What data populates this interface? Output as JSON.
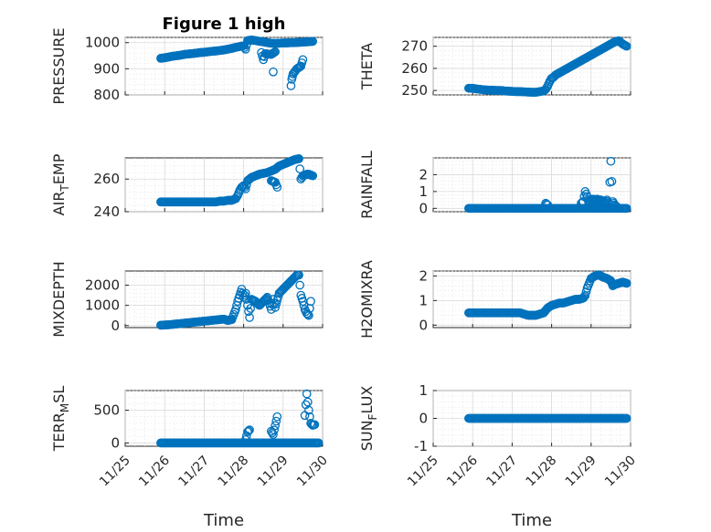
{
  "figure_title": "Figure 1 high",
  "colors": {
    "series": "#0072BD"
  },
  "chart_data": [
    {
      "type": "scatter",
      "title": "Figure 1 high",
      "xlabel": "",
      "ylabel": "PRESSURE",
      "ylim": [
        800,
        1020
      ],
      "yticks": [
        800,
        900,
        1000
      ],
      "ytick_labels": [
        "800",
        "900",
        "1000"
      ],
      "xlim": [
        0,
        5
      ],
      "xtick_labels": [],
      "grid": true,
      "x": [
        0.9,
        1.0,
        1.1,
        1.2,
        1.3,
        1.4,
        1.5,
        1.6,
        1.7,
        1.8,
        1.9,
        2.0,
        2.1,
        2.2,
        2.3,
        2.4,
        2.5,
        2.6,
        2.7,
        2.8,
        2.9,
        2.95,
        3.0,
        3.05,
        3.1,
        3.2,
        3.3,
        3.4,
        3.5,
        3.6,
        3.7,
        3.8,
        3.9,
        4.0,
        4.1,
        4.2,
        4.3,
        4.4,
        4.5,
        4.6,
        4.7,
        4.75,
        3.45,
        3.5,
        3.55,
        3.7,
        3.8,
        3.75,
        4.2,
        4.22,
        4.25,
        4.3,
        4.35,
        4.4,
        4.45,
        4.5
      ],
      "y": [
        940,
        942,
        945,
        948,
        950,
        952,
        955,
        957,
        958,
        960,
        962,
        963,
        965,
        967,
        968,
        970,
        972,
        975,
        978,
        982,
        985,
        987,
        988,
        975,
        1008,
        1010,
        1008,
        1005,
        1003,
        1000,
        998,
        997,
        998,
        999,
        999,
        1000,
        1000,
        1001,
        1002,
        1003,
        1004,
        1005,
        962,
        935,
        958,
        955,
        965,
        888,
        835,
        860,
        880,
        890,
        900,
        905,
        910,
        935
      ]
    },
    {
      "type": "scatter",
      "title": "",
      "xlabel": "",
      "ylabel": "THETA",
      "ylim": [
        248,
        274
      ],
      "yticks": [
        250,
        260,
        270
      ],
      "ytick_labels": [
        "250",
        "260",
        "270"
      ],
      "xlim": [
        0,
        5
      ],
      "xtick_labels": [],
      "grid": true,
      "x": [
        0.9,
        1.0,
        1.1,
        1.2,
        1.3,
        1.4,
        1.5,
        1.6,
        1.7,
        1.8,
        1.9,
        2.0,
        2.1,
        2.2,
        2.3,
        2.4,
        2.5,
        2.6,
        2.7,
        2.8,
        2.85,
        2.9,
        2.95,
        3.0,
        3.05,
        3.1,
        3.15,
        3.2,
        3.3,
        3.4,
        3.5,
        3.6,
        3.7,
        3.8,
        3.9,
        4.0,
        4.1,
        4.2,
        4.3,
        4.4,
        4.5,
        4.6,
        4.7,
        4.8,
        4.9
      ],
      "y": [
        251,
        251,
        250.7,
        250.5,
        250.3,
        250.2,
        250.1,
        250,
        250,
        249.8,
        249.7,
        249.6,
        249.5,
        249.5,
        249.4,
        249.3,
        249.2,
        249.2,
        249.5,
        249.8,
        250.5,
        252,
        254,
        255.5,
        256,
        257,
        257.5,
        258,
        259,
        260,
        261,
        262,
        263,
        264,
        265,
        266,
        267,
        268,
        269,
        270,
        271,
        272,
        272.5,
        271,
        270
      ]
    },
    {
      "type": "scatter",
      "title": "",
      "xlabel": "",
      "ylabel": "AIR_TEMP",
      "ylim": [
        240,
        273
      ],
      "yticks": [
        240,
        260
      ],
      "ytick_labels": [
        "240",
        "260"
      ],
      "xlim": [
        0,
        5
      ],
      "xtick_labels": [],
      "grid": true,
      "x": [
        0.9,
        1.0,
        1.1,
        1.2,
        1.3,
        1.4,
        1.5,
        1.6,
        1.7,
        1.8,
        1.9,
        2.0,
        2.1,
        2.2,
        2.3,
        2.4,
        2.5,
        2.6,
        2.7,
        2.8,
        2.85,
        2.9,
        2.95,
        3.0,
        3.05,
        3.1,
        3.2,
        3.3,
        3.4,
        3.5,
        3.6,
        3.7,
        3.8,
        3.9,
        4.0,
        4.1,
        4.2,
        4.3,
        4.4,
        4.45,
        4.5,
        4.55,
        4.6,
        4.65,
        4.7,
        4.75,
        3.7,
        3.8,
        3.85
      ],
      "y": [
        246,
        246,
        246,
        246,
        246,
        246,
        246,
        246,
        246,
        246,
        246,
        246,
        246,
        246,
        246,
        246.5,
        246.5,
        247,
        247,
        248,
        250,
        253,
        255,
        256,
        254,
        259,
        261,
        262,
        263,
        263.5,
        264,
        265,
        266,
        268,
        269,
        270,
        271,
        272,
        272.5,
        260,
        262,
        262.5,
        263,
        263,
        262.5,
        262,
        259,
        258,
        255
      ]
    },
    {
      "type": "scatter",
      "title": "",
      "xlabel": "",
      "ylabel": "RAINFALL",
      "ylim": [
        -0.2,
        3
      ],
      "yticks": [
        0,
        1,
        2
      ],
      "ytick_labels": [
        "0",
        "1",
        "2"
      ],
      "xlim": [
        0,
        5
      ],
      "xtick_labels": [],
      "grid": true,
      "x": [
        0.9,
        1.0,
        1.2,
        1.4,
        1.6,
        1.8,
        2.0,
        2.2,
        2.4,
        2.6,
        2.8,
        3.0,
        3.2,
        3.4,
        3.6,
        3.8,
        4.0,
        4.2,
        4.4,
        4.6,
        4.8,
        4.9,
        2.85,
        2.9,
        3.75,
        3.8,
        3.85,
        3.9,
        3.95,
        4.0,
        4.05,
        4.1,
        4.15,
        4.2,
        4.25,
        4.3,
        4.35,
        4.4,
        4.45,
        4.5,
        4.55,
        4.6,
        4.65
      ],
      "y": [
        0,
        0,
        0,
        0,
        0,
        0,
        0,
        0,
        0,
        0,
        0,
        0,
        0,
        0,
        0,
        0,
        0,
        0,
        0,
        0,
        0,
        0,
        0.3,
        0.2,
        0.3,
        0.4,
        1.0,
        0.7,
        0.3,
        0.5,
        0.55,
        0.5,
        0.55,
        0.5,
        0.5,
        0.4,
        0.35,
        0.5,
        0.3,
        2.8,
        0.4,
        0.2,
        0.1
      ]
    },
    {
      "type": "scatter",
      "title": "",
      "xlabel": "",
      "ylabel": "MIXDEPTH",
      "ylim": [
        -100,
        2700
      ],
      "yticks": [
        0,
        1000,
        2000
      ],
      "ytick_labels": [
        "0",
        "1000",
        "2000"
      ],
      "xlim": [
        0,
        5
      ],
      "xtick_labels": [],
      "grid": true,
      "x": [
        0.9,
        1.0,
        1.1,
        1.2,
        1.3,
        1.4,
        1.5,
        1.6,
        1.7,
        1.8,
        1.9,
        2.0,
        2.1,
        2.2,
        2.3,
        2.4,
        2.5,
        2.6,
        2.7,
        2.8,
        2.85,
        2.9,
        2.95,
        3.0,
        3.05,
        3.1,
        3.15,
        3.2,
        3.3,
        3.4,
        3.5,
        3.6,
        3.7,
        3.75,
        3.8,
        3.9,
        4.0,
        4.1,
        4.2,
        4.3,
        4.35,
        4.4,
        4.45,
        4.5,
        4.55,
        4.6,
        4.65,
        4.7
      ],
      "y": [
        20,
        30,
        40,
        60,
        80,
        100,
        120,
        140,
        160,
        180,
        200,
        220,
        240,
        260,
        280,
        300,
        320,
        250,
        300,
        800,
        1200,
        1500,
        1800,
        1400,
        1600,
        1000,
        400,
        1300,
        1200,
        1000,
        1200,
        1400,
        800,
        1300,
        900,
        1600,
        1800,
        2000,
        2200,
        2400,
        2500,
        2500,
        1500,
        1200,
        800,
        600,
        500,
        1200
      ]
    },
    {
      "type": "scatter",
      "title": "",
      "xlabel": "",
      "ylabel": "H2OMIXRA",
      "ylim": [
        -0.1,
        2.2
      ],
      "yticks": [
        0,
        1,
        2
      ],
      "ytick_labels": [
        "0",
        "1",
        "2"
      ],
      "xlim": [
        0,
        5
      ],
      "xtick_labels": [],
      "grid": true,
      "x": [
        0.9,
        1.0,
        1.2,
        1.4,
        1.6,
        1.8,
        2.0,
        2.2,
        2.4,
        2.5,
        2.6,
        2.7,
        2.8,
        2.85,
        2.9,
        3.0,
        3.1,
        3.2,
        3.3,
        3.4,
        3.5,
        3.6,
        3.7,
        3.8,
        3.85,
        3.9,
        3.95,
        4.0,
        4.1,
        4.2,
        4.3,
        4.4,
        4.5,
        4.55,
        4.6,
        4.7,
        4.8,
        4.9
      ],
      "y": [
        0.5,
        0.5,
        0.5,
        0.5,
        0.5,
        0.5,
        0.5,
        0.5,
        0.4,
        0.4,
        0.4,
        0.45,
        0.5,
        0.6,
        0.7,
        0.8,
        0.85,
        0.9,
        0.9,
        0.95,
        1.0,
        1.05,
        1.05,
        1.1,
        1.2,
        1.5,
        1.7,
        1.9,
        2.0,
        2.05,
        1.95,
        1.9,
        1.8,
        1.6,
        1.65,
        1.7,
        1.75,
        1.7
      ]
    },
    {
      "type": "scatter",
      "title": "",
      "xlabel": "Time",
      "ylabel": "TERR_MSL",
      "ylim": [
        -50,
        800
      ],
      "yticks": [
        0,
        500
      ],
      "ytick_labels": [
        "0",
        "500"
      ],
      "xlim": [
        0,
        5
      ],
      "xtick_labels": [
        "11/25",
        "11/26",
        "11/27",
        "11/28",
        "11/29",
        "11/30"
      ],
      "grid": true,
      "x": [
        0.9,
        1.0,
        1.2,
        1.4,
        1.6,
        1.8,
        2.0,
        2.2,
        2.4,
        2.6,
        2.8,
        3.0,
        3.2,
        3.4,
        3.6,
        3.8,
        4.0,
        4.2,
        4.4,
        4.6,
        4.8,
        4.9,
        3.05,
        3.1,
        3.15,
        3.7,
        3.75,
        3.85,
        4.55,
        4.6,
        4.65,
        4.7,
        4.75,
        4.8
      ],
      "y": [
        0,
        0,
        0,
        0,
        0,
        0,
        0,
        0,
        0,
        0,
        0,
        0,
        0,
        0,
        0,
        0,
        0,
        0,
        0,
        0,
        0,
        0,
        50,
        170,
        200,
        180,
        130,
        400,
        420,
        750,
        500,
        300,
        270,
        280
      ]
    },
    {
      "type": "scatter",
      "title": "",
      "xlabel": "Time",
      "ylabel": "SUN_FLUX",
      "ylim": [
        -1,
        1
      ],
      "yticks": [
        -1,
        0,
        1
      ],
      "ytick_labels": [
        "-1",
        "0",
        "1"
      ],
      "xlim": [
        0,
        5
      ],
      "xtick_labels": [
        "11/25",
        "11/26",
        "11/27",
        "11/28",
        "11/29",
        "11/30"
      ],
      "grid": true,
      "x": [
        0.9,
        1.0,
        1.1,
        1.2,
        1.3,
        1.4,
        1.5,
        1.6,
        1.7,
        1.8,
        1.9,
        2.0,
        2.1,
        2.2,
        2.3,
        2.4,
        2.5,
        2.6,
        2.7,
        2.8,
        2.9,
        3.0,
        3.1,
        3.2,
        3.3,
        3.4,
        3.5,
        3.6,
        3.7,
        3.8,
        3.9,
        4.0,
        4.1,
        4.2,
        4.3,
        4.4,
        4.5,
        4.6,
        4.7,
        4.8,
        4.9
      ],
      "y": [
        0,
        0,
        0,
        0,
        0,
        0,
        0,
        0,
        0,
        0,
        0,
        0,
        0,
        0,
        0,
        0,
        0,
        0,
        0,
        0,
        0,
        0,
        0,
        0,
        0,
        0,
        0,
        0,
        0,
        0,
        0,
        0,
        0,
        0,
        0,
        0,
        0,
        0,
        0,
        0,
        0
      ]
    }
  ]
}
